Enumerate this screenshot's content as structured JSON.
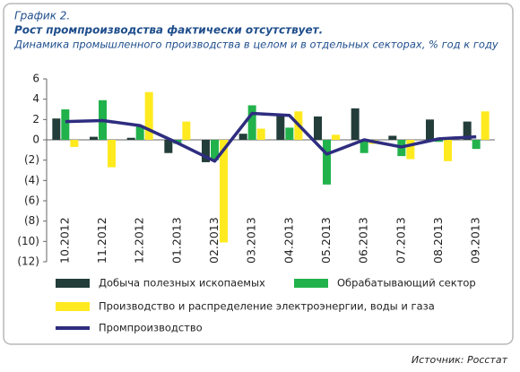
{
  "chart_data": {
    "type": "combo",
    "label": "График 2.",
    "title": "Рост промпроизводства фактически отсутствует.",
    "subtitle": "Динамика промышленного производства в целом и в отдельных секторах, % год к году",
    "source": "Источник: Росстат",
    "categories": [
      "10.2012",
      "11.2012",
      "12.2012",
      "01.2013",
      "02.2013",
      "03.2013",
      "04.2013",
      "05.2013",
      "06.2013",
      "07.2013",
      "08.2013",
      "09.2013"
    ],
    "series": [
      {
        "name": "Добыча полезных ископаемых",
        "type": "bar",
        "color": "#233d3a",
        "values": [
          2.1,
          0.3,
          0.2,
          -1.3,
          -2.2,
          0.6,
          2.5,
          2.3,
          3.1,
          0.4,
          2.0,
          1.8
        ]
      },
      {
        "name": "Обрабатывающий сектор",
        "type": "bar",
        "color": "#22b24c",
        "values": [
          3.0,
          3.9,
          1.3,
          -0.4,
          -2.0,
          3.4,
          1.2,
          -4.4,
          -1.3,
          -1.6,
          -0.2,
          -0.9
        ]
      },
      {
        "name": "Производство и распределение электроэнергии, воды и газа",
        "type": "bar",
        "color": "#ffea1f",
        "values": [
          -0.7,
          -2.7,
          4.7,
          1.8,
          -10.1,
          1.1,
          2.8,
          0.5,
          -0.4,
          -1.9,
          -2.1,
          2.8
        ]
      },
      {
        "name": "Промпроизводство",
        "type": "line",
        "color": "#2e2d7f",
        "values": [
          1.8,
          1.9,
          1.4,
          -0.3,
          -2.1,
          2.6,
          2.4,
          -1.4,
          0.0,
          -0.7,
          0.1,
          0.3
        ]
      }
    ],
    "ylim": [
      -12,
      6
    ],
    "yticks": [
      6,
      4,
      2,
      0,
      {
        "value": -2,
        "label": "(2)"
      },
      {
        "value": -4,
        "label": "(4)"
      },
      {
        "value": -6,
        "label": "(6)"
      },
      {
        "value": -8,
        "label": "(8)"
      },
      {
        "value": -10,
        "label": "(10)"
      },
      {
        "value": -12,
        "label": "(12)"
      }
    ],
    "grid": false
  }
}
